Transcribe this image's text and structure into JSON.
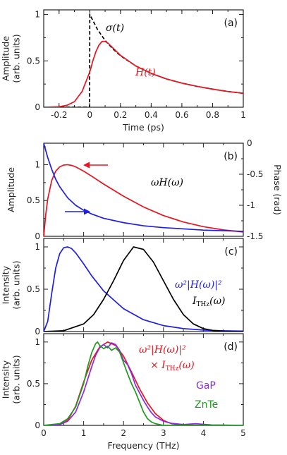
{
  "chart_data": [
    {
      "panel": "(a)",
      "type": "line",
      "xlabel": "Time (ps)",
      "ylabel": "Amplitude\n(arb. units)",
      "xlim": [
        -0.3,
        1.0
      ],
      "ylim": [
        0,
        1.05
      ],
      "x_ticks": [
        -0.2,
        0,
        0.2,
        0.4,
        0.6,
        0.8,
        1
      ],
      "x_tick_labels": [
        "-0.2",
        "0",
        "0.2",
        "0.4",
        "0.6",
        "0.8",
        "1"
      ],
      "y_ticks": [
        0,
        0.5,
        1
      ],
      "y_tick_labels": [
        "0",
        "0.5",
        "1"
      ],
      "series": [
        {
          "name": "σ(t)",
          "color": "#000000",
          "style": "dashed",
          "x": [
            -0.3,
            -0.2,
            -0.1,
            -0.001,
            0,
            0.05,
            0.1,
            0.15,
            0.2,
            0.3,
            0.4,
            0.5,
            0.6,
            0.7,
            0.8,
            0.9,
            1.0
          ],
          "y": [
            0,
            0,
            0,
            0,
            1.0,
            0.84,
            0.72,
            0.63,
            0.555,
            0.445,
            0.365,
            0.305,
            0.26,
            0.225,
            0.195,
            0.17,
            0.15
          ]
        },
        {
          "name": "H(t)",
          "color": "#e8141e",
          "style": "solid",
          "x": [
            -0.3,
            -0.2,
            -0.15,
            -0.1,
            -0.05,
            0,
            0.02,
            0.04,
            0.06,
            0.08,
            0.1,
            0.12,
            0.15,
            0.2,
            0.3,
            0.4,
            0.5,
            0.6,
            0.7,
            0.8,
            0.9,
            1.0
          ],
          "y": [
            0,
            0.005,
            0.02,
            0.06,
            0.17,
            0.38,
            0.5,
            0.6,
            0.67,
            0.71,
            0.71,
            0.69,
            0.64,
            0.56,
            0.445,
            0.365,
            0.305,
            0.26,
            0.225,
            0.195,
            0.17,
            0.15
          ]
        }
      ]
    },
    {
      "panel": "(b)",
      "type": "line",
      "xlabel": "",
      "ylabel": "Amplitude",
      "y2label": "Phase (rad)",
      "xlim": [
        0,
        5
      ],
      "ylim": [
        0,
        1.3
      ],
      "y2lim": [
        -1.5,
        0
      ],
      "y_ticks": [
        0,
        0.5,
        1
      ],
      "y_tick_labels": [
        "0",
        "0.5",
        "1"
      ],
      "y2_ticks": [
        0,
        -0.5,
        -1,
        -1.5
      ],
      "y2_tick_labels": [
        "0",
        "-0.5",
        "-1",
        "-1.5"
      ],
      "series": [
        {
          "name": "ωH(ω)",
          "axis": "left",
          "color": "#e8141e",
          "x": [
            0,
            0.05,
            0.1,
            0.2,
            0.3,
            0.4,
            0.5,
            0.6,
            0.7,
            0.8,
            1.0,
            1.2,
            1.5,
            2.0,
            2.5,
            3.0,
            3.5,
            4.0,
            4.5,
            5.0
          ],
          "y": [
            0,
            0.3,
            0.52,
            0.78,
            0.91,
            0.97,
            0.995,
            1.0,
            0.99,
            0.97,
            0.91,
            0.84,
            0.73,
            0.56,
            0.41,
            0.29,
            0.2,
            0.135,
            0.09,
            0.06
          ]
        },
        {
          "name": "Phase",
          "axis": "right",
          "color": "#1e1ee6",
          "x": [
            0,
            0.1,
            0.2,
            0.3,
            0.4,
            0.6,
            0.8,
            1.0,
            1.2,
            1.5,
            2.0,
            2.5,
            3.0,
            3.5,
            4.0,
            4.5,
            5.0
          ],
          "y": [
            0,
            -0.23,
            -0.42,
            -0.58,
            -0.7,
            -0.88,
            -1.0,
            -1.08,
            -1.14,
            -1.21,
            -1.28,
            -1.33,
            -1.36,
            -1.38,
            -1.4,
            -1.41,
            -1.42
          ]
        }
      ]
    },
    {
      "panel": "(c)",
      "type": "line",
      "xlabel": "",
      "ylabel": "Intensity\n(arb. units)",
      "xlim": [
        0,
        5
      ],
      "ylim": [
        0,
        1.1
      ],
      "y_ticks": [
        0,
        0.5,
        1
      ],
      "y_tick_labels": [
        "0",
        "0.5",
        "1"
      ],
      "series": [
        {
          "name": "ω²|H(ω)|²",
          "color": "#1e1ee6",
          "x": [
            0,
            0.1,
            0.2,
            0.3,
            0.4,
            0.5,
            0.6,
            0.7,
            0.8,
            1.0,
            1.2,
            1.5,
            2.0,
            2.5,
            3.0,
            3.5,
            4.0,
            4.5,
            5.0
          ],
          "y": [
            0,
            0.12,
            0.45,
            0.75,
            0.92,
            0.99,
            1.0,
            0.98,
            0.93,
            0.8,
            0.66,
            0.48,
            0.27,
            0.14,
            0.07,
            0.035,
            0.018,
            0.009,
            0.005
          ]
        },
        {
          "name": "I_THz(ω)",
          "color": "#000000",
          "x": [
            0,
            0.5,
            1.0,
            1.25,
            1.5,
            1.75,
            2.0,
            2.25,
            2.5,
            2.75,
            3.0,
            3.25,
            3.5,
            3.75,
            4.0,
            4.25,
            4.5,
            5.0
          ],
          "y": [
            0,
            0.01,
            0.09,
            0.2,
            0.38,
            0.6,
            0.84,
            1.0,
            0.97,
            0.82,
            0.6,
            0.38,
            0.2,
            0.09,
            0.035,
            0.012,
            0.004,
            0
          ]
        }
      ]
    },
    {
      "panel": "(d)",
      "type": "line",
      "xlabel": "Frequency (THz)",
      "ylabel": "Intensity\n(arb. units)",
      "xlim": [
        0,
        5
      ],
      "ylim": [
        0,
        1.1
      ],
      "x_ticks": [
        0,
        1,
        2,
        3,
        4,
        5
      ],
      "x_tick_labels": [
        "0",
        "1",
        "2",
        "3",
        "4",
        "5"
      ],
      "y_ticks": [
        0,
        0.5,
        1
      ],
      "y_tick_labels": [
        "0",
        "0.5",
        "1"
      ],
      "series": [
        {
          "name": "ω²|H(ω)|² × I_THz(ω)",
          "color": "#e8141e",
          "x": [
            0,
            0.4,
            0.6,
            0.8,
            1.0,
            1.2,
            1.4,
            1.6,
            1.8,
            2.0,
            2.2,
            2.4,
            2.6,
            2.8,
            3.0,
            3.2,
            3.5,
            4.0,
            5.0
          ],
          "y": [
            0,
            0.01,
            0.06,
            0.23,
            0.52,
            0.78,
            0.94,
            1.0,
            0.96,
            0.83,
            0.64,
            0.44,
            0.27,
            0.14,
            0.06,
            0.02,
            0.005,
            0,
            0
          ]
        },
        {
          "name": "GaP",
          "color": "#8a2be2",
          "x": [
            0,
            0.4,
            0.6,
            0.8,
            1.0,
            1.1,
            1.2,
            1.3,
            1.4,
            1.5,
            1.6,
            1.7,
            1.8,
            1.9,
            2.0,
            2.1,
            2.2,
            2.3,
            2.4,
            2.5,
            2.6,
            2.7,
            2.8,
            3.0,
            3.2,
            3.5,
            3.8,
            4.2,
            5.0
          ],
          "y": [
            0,
            0.01,
            0.05,
            0.16,
            0.4,
            0.55,
            0.7,
            0.84,
            0.93,
            0.97,
            0.93,
            0.99,
            0.97,
            0.9,
            0.78,
            0.73,
            0.62,
            0.48,
            0.39,
            0.3,
            0.22,
            0.15,
            0.1,
            0.05,
            0.025,
            0.01,
            0.02,
            0.005,
            0
          ]
        },
        {
          "name": "ZnTe",
          "color": "#1f9a1f",
          "x": [
            0,
            0.4,
            0.6,
            0.8,
            1.0,
            1.1,
            1.2,
            1.3,
            1.35,
            1.4,
            1.5,
            1.6,
            1.7,
            1.8,
            1.9,
            2.0,
            2.1,
            2.2,
            2.3,
            2.4,
            2.5,
            2.6,
            2.7,
            2.8,
            2.9,
            3.0,
            5.0
          ],
          "y": [
            0,
            0.02,
            0.08,
            0.22,
            0.5,
            0.7,
            0.87,
            0.98,
            1.0,
            0.96,
            0.92,
            0.95,
            0.9,
            0.93,
            0.88,
            0.75,
            0.62,
            0.5,
            0.4,
            0.28,
            0.16,
            0.08,
            0.04,
            0.02,
            0.01,
            0,
            0
          ]
        }
      ]
    }
  ],
  "annotations": {
    "a_sigma": "σ(t)",
    "a_H": "H(t)",
    "b_omegaH": "ωH(ω)",
    "c_blue": "ω²|H(ω)|²",
    "c_black": "I",
    "c_black_sub": "THz",
    "c_black_arg": "(ω)",
    "d_red1": "ω²|H(ω)|²",
    "d_red2_prefix": "× I",
    "d_red2_sub": "THz",
    "d_red2_arg": "(ω)",
    "d_gap": "GaP",
    "d_znte": "ZnTe"
  }
}
